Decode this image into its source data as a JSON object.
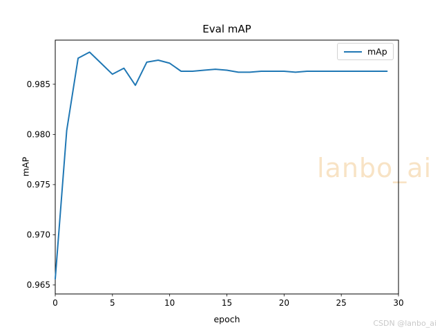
{
  "figure": {
    "background": "#ffffff",
    "axes_edge_color": "#000000"
  },
  "chart_data": {
    "type": "line",
    "title": "Eval mAP",
    "xlabel": "epoch",
    "ylabel": "mAP",
    "grid": false,
    "legend": {
      "position": "upper right",
      "entries": [
        "mAp"
      ]
    },
    "x": [
      0,
      1,
      2,
      3,
      4,
      5,
      6,
      7,
      8,
      9,
      10,
      11,
      12,
      13,
      14,
      15,
      16,
      17,
      18,
      19,
      20,
      21,
      22,
      23,
      24,
      25,
      26,
      27,
      28,
      29
    ],
    "series": [
      {
        "name": "mAp",
        "color": "#1f77b4",
        "values": [
          0.9656,
          0.9804,
          0.9876,
          0.9882,
          0.9871,
          0.986,
          0.9866,
          0.9849,
          0.9872,
          0.9874,
          0.9871,
          0.9863,
          0.9863,
          0.9864,
          0.9865,
          0.9864,
          0.9862,
          0.9862,
          0.9863,
          0.9863,
          0.9863,
          0.9862,
          0.9863,
          0.9863,
          0.9863,
          0.9863,
          0.9863,
          0.9863,
          0.9863,
          0.9863
        ]
      }
    ],
    "xlim": [
      0,
      30
    ],
    "ylim": [
      0.9641,
      0.9894
    ],
    "xticks": {
      "values": [
        0,
        5,
        10,
        15,
        20,
        25,
        30
      ],
      "labels": [
        "0",
        "5",
        "10",
        "15",
        "20",
        "25",
        "30"
      ]
    },
    "yticks": {
      "values": [
        0.965,
        0.97,
        0.975,
        0.98,
        0.985
      ],
      "labels": [
        "0.965",
        "0.970",
        "0.975",
        "0.980",
        "0.985"
      ]
    }
  },
  "watermarks": {
    "center": "lanbo_ai",
    "center_color": "#f8e3c5",
    "corner": "CSDN @lanbo_ai",
    "corner_color": "#c9c9c9"
  }
}
